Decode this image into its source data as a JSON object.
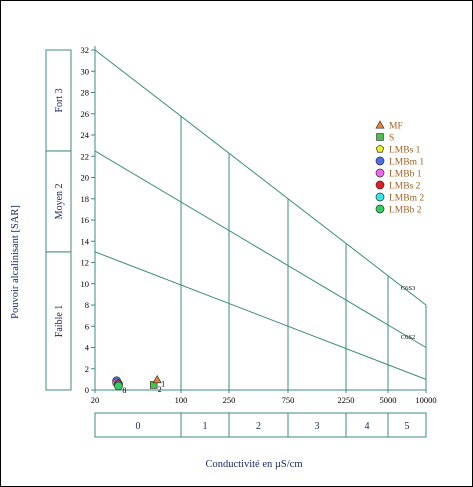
{
  "chart_data": {
    "type": "scatter",
    "xlabel": "Conductivité en µS/cm",
    "ylabel": "Pouvoir alcalinisant [SAR]",
    "x_ticks": [
      "20",
      "100",
      "250",
      "750",
      "2250",
      "5000",
      "10000"
    ],
    "y_ticks": [
      "0",
      "2",
      "4",
      "6",
      "8",
      "10",
      "12",
      "14",
      "16",
      "18",
      "20",
      "22",
      "24",
      "26",
      "28",
      "30",
      "32"
    ],
    "ylim": [
      0,
      32
    ],
    "x_scale": "piecewise (tick labels)",
    "sar_classes": [
      {
        "label": "Faible  1",
        "from": 0,
        "to": 13
      },
      {
        "label": "Moyen  2",
        "from": 13,
        "to": 22.5
      },
      {
        "label": "Fort  3",
        "from": 22.5,
        "to": 32
      }
    ],
    "salinity_classes": [
      {
        "label": "0",
        "from": "20",
        "to": "100"
      },
      {
        "label": "1",
        "from": "100",
        "to": "250"
      },
      {
        "label": "2",
        "from": "250",
        "to": "750"
      },
      {
        "label": "3",
        "from": "750",
        "to": "2250"
      },
      {
        "label": "4",
        "from": "2250",
        "to": "5000"
      },
      {
        "label": "5",
        "from": "5000",
        "to": "10000"
      }
    ],
    "boundary_lines": [
      {
        "y_at_20": 32,
        "y_at_10000": 8
      },
      {
        "y_at_20": 22.5,
        "y_at_10000": 4
      },
      {
        "y_at_20": 13,
        "y_at_10000": 1
      }
    ],
    "line_labels": [
      "C6S3",
      "C6S2"
    ],
    "legend": [
      {
        "name": "MF",
        "marker": "triangle",
        "color": "#e8823a"
      },
      {
        "name": "S",
        "marker": "square",
        "color": "#4cc04c"
      },
      {
        "name": "LMBs 1",
        "marker": "pentagon",
        "color": "#f0f020"
      },
      {
        "name": "LMBm 1",
        "marker": "circle",
        "color": "#4f6fe8"
      },
      {
        "name": "LMBb 1",
        "marker": "circle",
        "color": "#ee66ee"
      },
      {
        "name": "LMBs 2",
        "marker": "circle",
        "color": "#e02020"
      },
      {
        "name": "LMBm 2",
        "marker": "circle",
        "color": "#30e8e8"
      },
      {
        "name": "LMBb 2",
        "marker": "circle",
        "color": "#30d060"
      }
    ],
    "legend_placement": "right",
    "point_labels": [
      "8",
      "2",
      "1"
    ],
    "points": [
      {
        "series": "LMBm 1",
        "x": 30,
        "y": 0.5,
        "label": ""
      },
      {
        "series": "LMBb 1",
        "x": 30,
        "y": 0.3,
        "label": ""
      },
      {
        "series": "LMBs 2",
        "x": 31,
        "y": 0.2,
        "label": ""
      },
      {
        "series": "LMBm 2",
        "x": 31,
        "y": 0.1,
        "label": ""
      },
      {
        "series": "LMBb 2",
        "x": 31,
        "y": 0.0,
        "label": "8"
      },
      {
        "series": "S",
        "x": 60,
        "y": 0.1,
        "label": "2"
      },
      {
        "series": "MF",
        "x": 64,
        "y": 0.6,
        "label": "1"
      }
    ],
    "colors": {
      "grid": "#3c8c7c",
      "axis": "#000000"
    }
  }
}
